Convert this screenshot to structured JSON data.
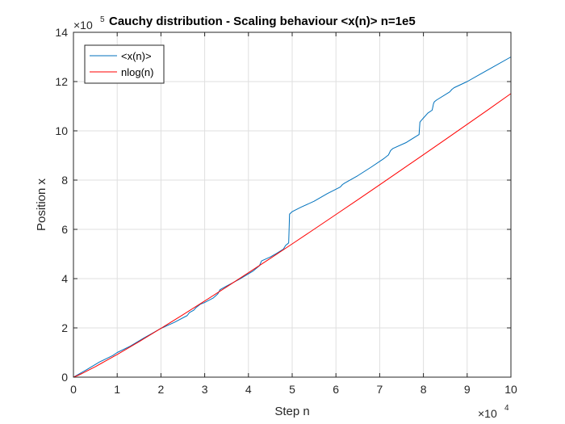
{
  "chart_data": {
    "type": "line",
    "title": "Cauchy distribution - Scaling behaviour <x(n)> n=1e5",
    "xlabel": "Step n",
    "ylabel": "Position x",
    "xlim": [
      0,
      100000
    ],
    "ylim": [
      0,
      1400000
    ],
    "x_multiplier": {
      "base": "10",
      "exponent": "4"
    },
    "y_multiplier": {
      "base": "10",
      "exponent": "5"
    },
    "x_ticks": [
      0,
      10000,
      20000,
      30000,
      40000,
      50000,
      60000,
      70000,
      80000,
      90000,
      100000
    ],
    "x_tick_labels": [
      "0",
      "1",
      "2",
      "3",
      "4",
      "5",
      "6",
      "7",
      "8",
      "9",
      "10"
    ],
    "y_ticks": [
      0,
      200000,
      400000,
      600000,
      800000,
      1000000,
      1200000,
      1400000
    ],
    "y_tick_labels": [
      "0",
      "2",
      "4",
      "6",
      "8",
      "10",
      "12",
      "14"
    ],
    "grid": true,
    "legend_position": "top-left",
    "series": [
      {
        "name": "<x(n)>",
        "color": "#0072BD",
        "x": [
          0,
          3000,
          6000,
          9000,
          10000,
          13000,
          16000,
          19000,
          20000,
          23000,
          26000,
          26500,
          27500,
          28000,
          29000,
          30000,
          32000,
          33000,
          33500,
          35000,
          38000,
          41000,
          42500,
          43000,
          45000,
          46500,
          48000,
          48500,
          49000,
          49200,
          49400,
          50000,
          52000,
          55000,
          58000,
          61000,
          61500,
          62000,
          65000,
          68000,
          71000,
          72000,
          72500,
          73000,
          76000,
          79000,
          79200,
          79400,
          80000,
          81000,
          82000,
          82300,
          82500,
          83000,
          86000,
          86500,
          87000,
          90000,
          93000,
          96000,
          100000
        ],
        "y": [
          0,
          30000,
          62000,
          88000,
          100000,
          126000,
          158000,
          188000,
          198000,
          222000,
          250000,
          262000,
          272000,
          282000,
          296000,
          303000,
          322000,
          338000,
          355000,
          370000,
          398000,
          430000,
          452000,
          472000,
          488000,
          503000,
          520000,
          535000,
          542000,
          545000,
          662000,
          672000,
          690000,
          714000,
          745000,
          772000,
          782000,
          788000,
          818000,
          852000,
          888000,
          902000,
          920000,
          928000,
          952000,
          985000,
          1035000,
          1040000,
          1052000,
          1072000,
          1084000,
          1110000,
          1118000,
          1125000,
          1158000,
          1168000,
          1175000,
          1200000,
          1230000,
          1260000,
          1300000
        ]
      },
      {
        "name": "nlog(n)",
        "color": "#FF0000",
        "x": [
          1,
          1000,
          2000,
          5000,
          10000,
          15000,
          20000,
          25000,
          30000,
          35000,
          40000,
          45000,
          50000,
          55000,
          60000,
          65000,
          70000,
          75000,
          80000,
          85000,
          90000,
          95000,
          100000
        ],
        "y": [
          0,
          6908,
          15202,
          42586,
          92103,
          144240,
          198070,
          253178,
          309268,
          366206,
          423865,
          482131,
          540988,
          600360,
          660181,
          720402,
          780983,
          841909,
          903145,
          964640,
          1026410,
          1088430,
          1151293
        ]
      }
    ]
  }
}
